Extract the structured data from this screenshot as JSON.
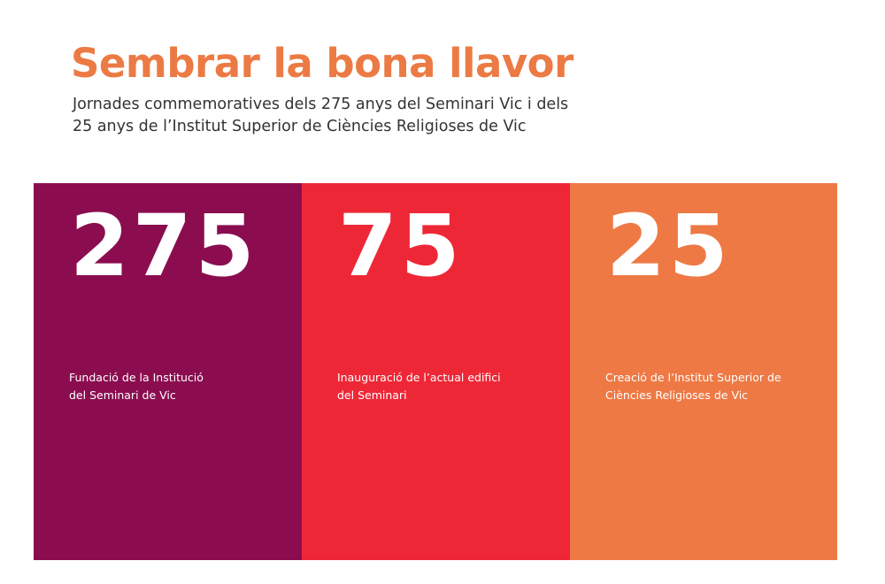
{
  "header": {
    "title": "Sembrar la bona llavor",
    "subtitle_lines": [
      "Jornades commemoratives dels 275 anys del Seminari Vic i dels",
      "25 anys de l’Institut Superior de Ciències Religioses de Vic"
    ]
  },
  "panels": [
    {
      "number": "275",
      "caption_lines": [
        "Fundació de la Institució",
        "del Seminari de Vic"
      ]
    },
    {
      "number": "75",
      "caption_lines": [
        "Inauguració de l’actual edifici",
        "del Seminari"
      ]
    },
    {
      "number": "25",
      "caption_lines": [
        "Creació de l’Institut Superior de",
        "Ciències Religioses de Vic"
      ]
    }
  ],
  "colors": {
    "title": "#ec7a44",
    "panel_1": "#8b0d4f",
    "panel_2": "#ee2737",
    "panel_3": "#ee7945"
  }
}
